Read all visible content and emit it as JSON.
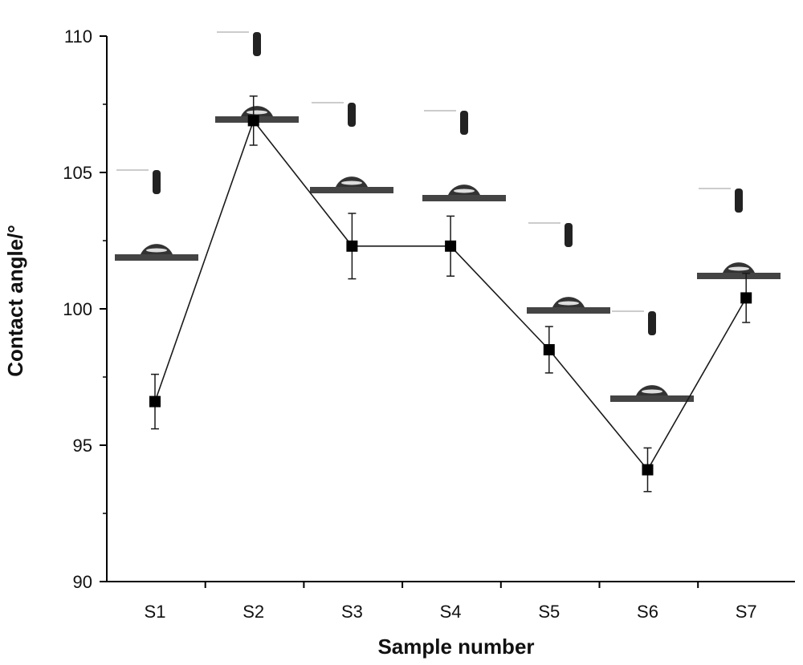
{
  "chart_data": {
    "type": "line",
    "title": "",
    "xlabel": "Sample number",
    "ylabel": "Contact angle/°",
    "categories": [
      "S1",
      "S2",
      "S3",
      "S4",
      "S5",
      "S6",
      "S7"
    ],
    "series": [
      {
        "name": "Contact angle",
        "values": [
          96.6,
          106.9,
          102.3,
          102.3,
          98.5,
          94.1,
          100.4
        ],
        "error": [
          1.0,
          0.9,
          1.2,
          1.1,
          0.85,
          0.8,
          0.9
        ]
      }
    ],
    "ylim": [
      90,
      110
    ],
    "yticks": [
      90,
      95,
      100,
      105,
      110
    ],
    "grid": false,
    "legend": "none",
    "insets": "water droplet contact-angle photographs above each sample point"
  },
  "colors": {
    "line": "#1a1a1a",
    "marker": "#000000",
    "axis": "#000000"
  }
}
